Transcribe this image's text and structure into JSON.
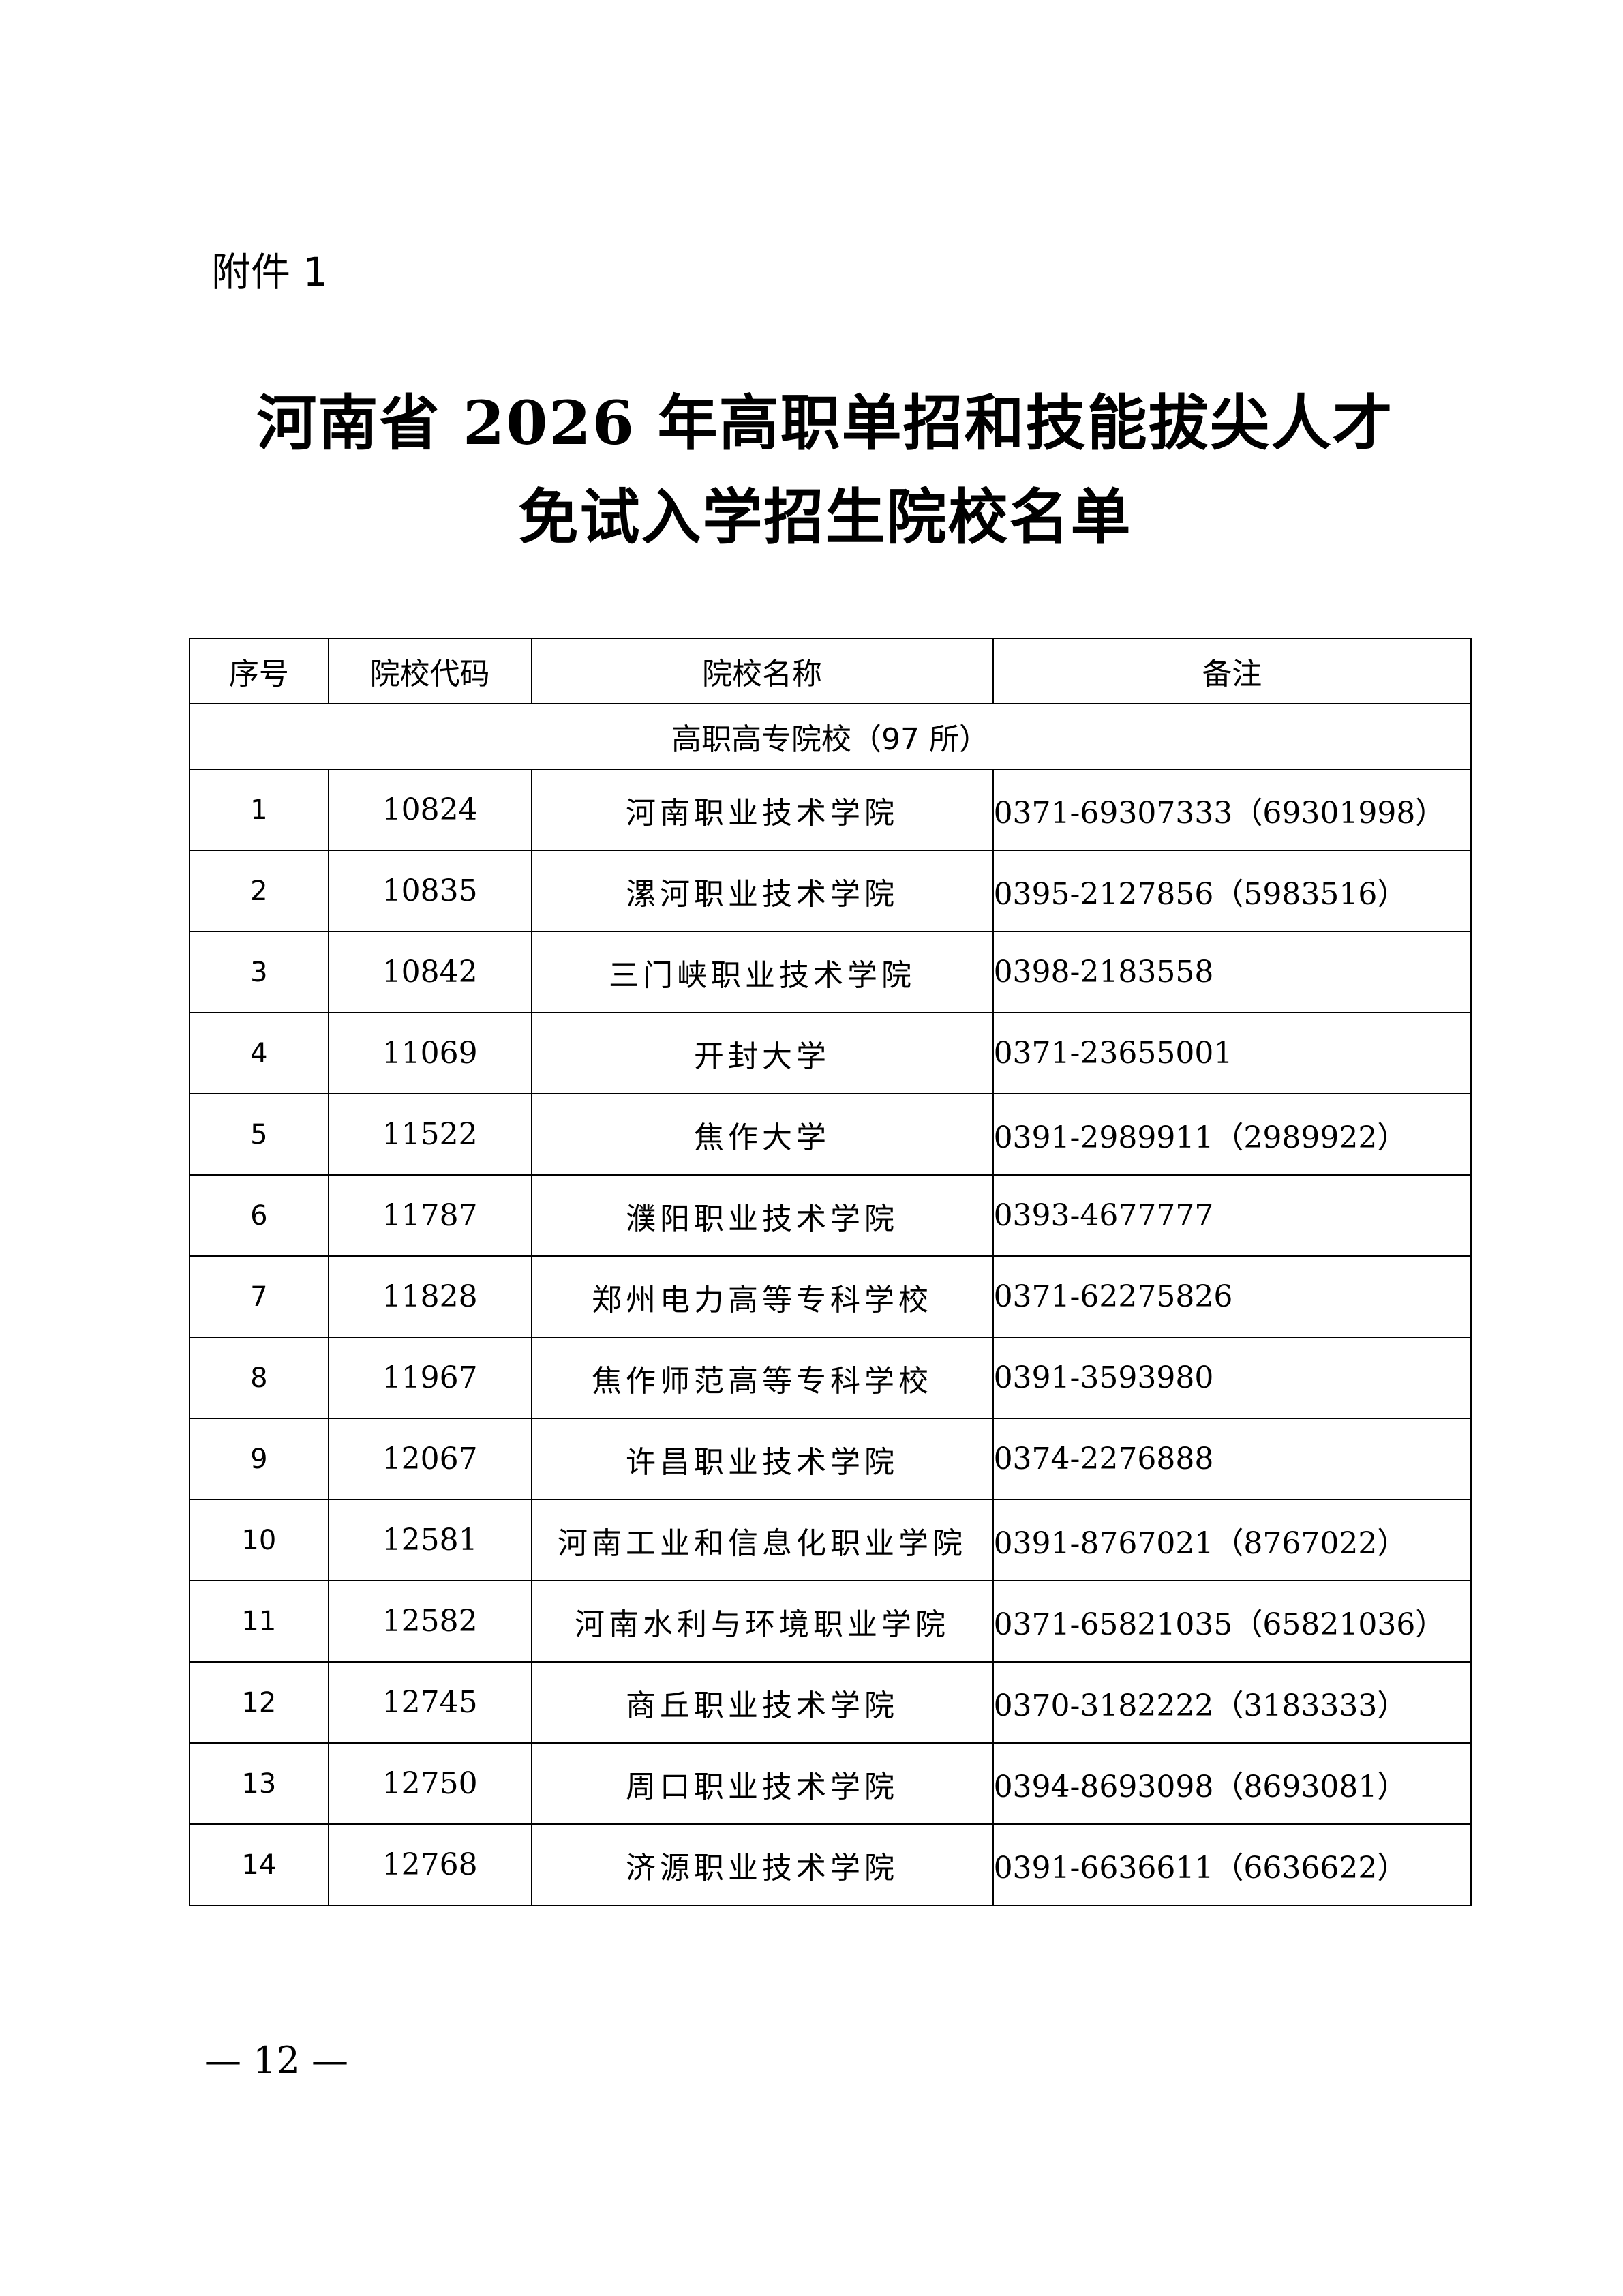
{
  "attachment_label": "附件 1",
  "title_line1": "河南省 2026 年高职单招和技能拔尖人才",
  "title_line2": "免试入学招生院校名单",
  "table": {
    "headers": [
      "序号",
      "院校代码",
      "院校名称",
      "备注"
    ],
    "category": "高职高专院校（97 所）",
    "rows": [
      [
        "1",
        "10824",
        "河南职业技术学院",
        "0371-69307333（69301998）"
      ],
      [
        "2",
        "10835",
        "漯河职业技术学院",
        "0395-2127856（5983516）"
      ],
      [
        "3",
        "10842",
        "三门峡职业技术学院",
        "0398-2183558"
      ],
      [
        "4",
        "11069",
        "开封大学",
        "0371-23655001"
      ],
      [
        "5",
        "11522",
        "焦作大学",
        "0391-2989911（2989922）"
      ],
      [
        "6",
        "11787",
        "濮阳职业技术学院",
        "0393-4677777"
      ],
      [
        "7",
        "11828",
        "郑州电力高等专科学校",
        "0371-62275826"
      ],
      [
        "8",
        "11967",
        "焦作师范高等专科学校",
        "0391-3593980"
      ],
      [
        "9",
        "12067",
        "许昌职业技术学院",
        "0374-2276888"
      ],
      [
        "10",
        "12581",
        "河南工业和信息化职业学院",
        "0391-8767021（8767022）"
      ],
      [
        "11",
        "12582",
        "河南水利与环境职业学院",
        "0371-65821035（65821036）"
      ],
      [
        "12",
        "12745",
        "商丘职业技术学院",
        "0370-3182222（3183333）"
      ],
      [
        "13",
        "12750",
        "周口职业技术学院",
        "0394-8693098（8693081）"
      ],
      [
        "14",
        "12768",
        "济源职业技术学院",
        "0391-6636611（6636622）"
      ]
    ]
  },
  "page_number": "— 12 —"
}
